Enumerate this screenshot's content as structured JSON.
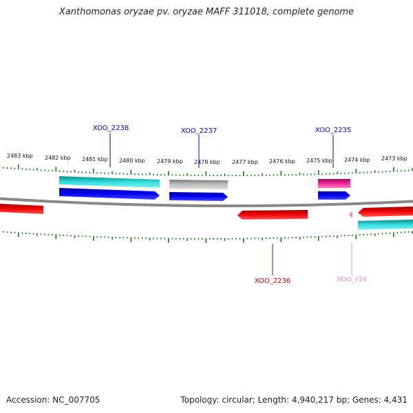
{
  "title": "Xanthomonas oryzae pv. oryzae MAFF 311018, complete genome",
  "footer": {
    "accession": "Accession: NC_007705",
    "topology": "Topology: circular; Length: 4,940,217 bp; Genes: 4,431"
  },
  "scale_labels": [
    "2483 kbp",
    "2482 kbp",
    "2481 kbp",
    "2480 kbp",
    "2479 kbp",
    "2478 kbp",
    "2477 kbp",
    "2476 kbp",
    "2475 kbp",
    "2474 kbp",
    "2473 kbp"
  ],
  "gene_labels": [
    {
      "id": "XOO_2238",
      "color": "#0000cc"
    },
    {
      "id": "XOO_2237",
      "color": "#0000cc"
    },
    {
      "id": "XOO_2235",
      "color": "#0000cc"
    },
    {
      "id": "XOO_2236",
      "color": "#cc0000"
    },
    {
      "id": "XOO_r34",
      "color": "#ff88bb"
    }
  ],
  "colors": {
    "cds_forward": "#0000ee",
    "cds_reverse": "#ee0000",
    "feature_cyan": "#22cccc",
    "feature_gray": "#bbbbbb",
    "feature_magenta": "#ee2299",
    "rna": "#ff88bb",
    "tick": "#007700",
    "backbone": "#888888"
  }
}
